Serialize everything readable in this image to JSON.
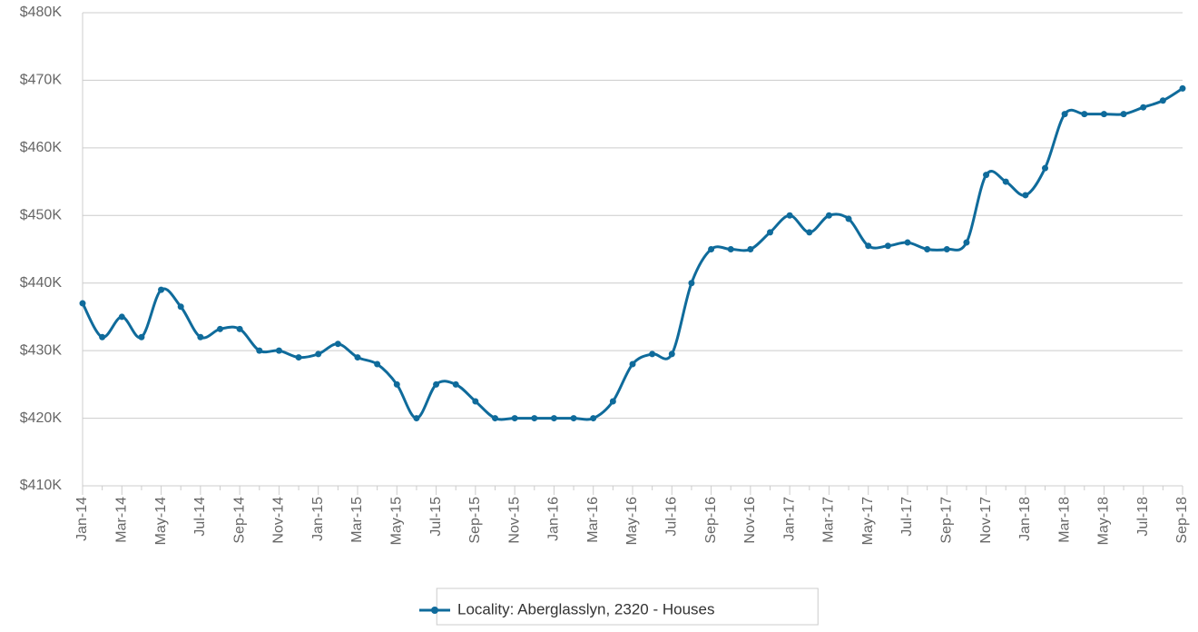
{
  "chart_data": {
    "type": "line",
    "categories": [
      "Jan-14",
      null,
      "Mar-14",
      null,
      "May-14",
      null,
      "Jul-14",
      null,
      "Sep-14",
      null,
      "Nov-14",
      null,
      "Jan-15",
      null,
      "Mar-15",
      null,
      "May-15",
      null,
      "Jul-15",
      null,
      "Sep-15",
      null,
      "Nov-15",
      null,
      "Jan-16",
      null,
      "Mar-16",
      null,
      "May-16",
      null,
      "Jul-16",
      null,
      "Sep-16",
      null,
      "Nov-16",
      null,
      "Jan-17",
      null,
      "Mar-17",
      null,
      "May-17",
      null,
      "Jul-17",
      null,
      "Sep-17",
      null,
      "Nov-17",
      null,
      "Jan-18",
      null,
      "Mar-18",
      null,
      "May-18",
      null,
      "Jul-18",
      null,
      "Sep-18"
    ],
    "series": [
      {
        "name": "Locality: Aberglasslyn, 2320 - Houses",
        "color": "#0f6b9b",
        "values": [
          437000,
          432000,
          435000,
          432000,
          439000,
          436500,
          432000,
          433200,
          433200,
          430000,
          430000,
          429000,
          429500,
          431000,
          429000,
          428000,
          425000,
          420000,
          425000,
          425000,
          422500,
          420000,
          420000,
          420000,
          420000,
          420000,
          420000,
          422500,
          428000,
          429500,
          429500,
          440000,
          445000,
          445000,
          445000,
          447500,
          450000,
          447500,
          450000,
          449500,
          445500,
          445500,
          446000,
          445000,
          445000,
          446000,
          456000,
          455000,
          453000,
          457000,
          465000,
          465000,
          465000,
          465000,
          466000,
          467000,
          468800
        ]
      }
    ],
    "ylim": [
      410000,
      480000
    ],
    "yticks": [
      {
        "value": 410000,
        "label": "$410K"
      },
      {
        "value": 420000,
        "label": "$420K"
      },
      {
        "value": 430000,
        "label": "$430K"
      },
      {
        "value": 440000,
        "label": "$440K"
      },
      {
        "value": 450000,
        "label": "$450K"
      },
      {
        "value": 460000,
        "label": "$460K"
      },
      {
        "value": 470000,
        "label": "$470K"
      },
      {
        "value": 480000,
        "label": "$480K"
      }
    ],
    "grid": true,
    "legend": "bottom"
  }
}
